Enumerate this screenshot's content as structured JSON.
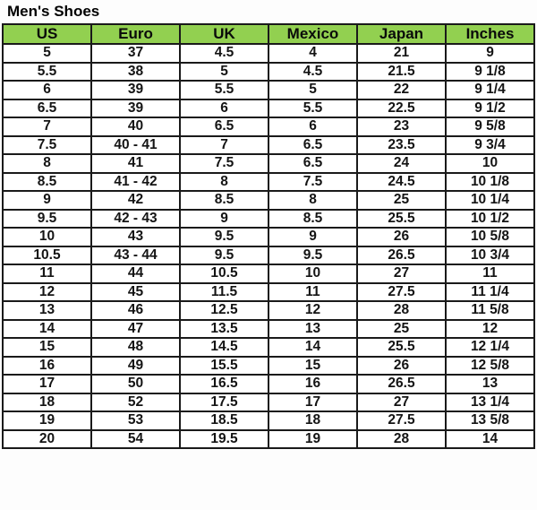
{
  "page": {
    "title": "Men's Shoes"
  },
  "colors": {
    "header_bg": "#92d050",
    "border": "#1a1a1a",
    "text": "#111111"
  },
  "chart_data": {
    "type": "table",
    "title": "Men's Shoes",
    "columns": [
      "US",
      "Euro",
      "UK",
      "Mexico",
      "Japan",
      "Inches"
    ],
    "rows": [
      [
        "5",
        "37",
        "4.5",
        "4",
        "21",
        "9"
      ],
      [
        "5.5",
        "38",
        "5",
        "4.5",
        "21.5",
        "9 1/8"
      ],
      [
        "6",
        "39",
        "5.5",
        "5",
        "22",
        "9 1/4"
      ],
      [
        "6.5",
        "39",
        "6",
        "5.5",
        "22.5",
        "9 1/2"
      ],
      [
        "7",
        "40",
        "6.5",
        "6",
        "23",
        "9 5/8"
      ],
      [
        "7.5",
        "40 - 41",
        "7",
        "6.5",
        "23.5",
        "9 3/4"
      ],
      [
        "8",
        "41",
        "7.5",
        "6.5",
        "24",
        "10"
      ],
      [
        "8.5",
        "41 - 42",
        "8",
        "7.5",
        "24.5",
        "10 1/8"
      ],
      [
        "9",
        "42",
        "8.5",
        "8",
        "25",
        "10 1/4"
      ],
      [
        "9.5",
        "42 - 43",
        "9",
        "8.5",
        "25.5",
        "10 1/2"
      ],
      [
        "10",
        "43",
        "9.5",
        "9",
        "26",
        "10 5/8"
      ],
      [
        "10.5",
        "43 - 44",
        "9.5",
        "9.5",
        "26.5",
        "10 3/4"
      ],
      [
        "11",
        "44",
        "10.5",
        "10",
        "27",
        "11"
      ],
      [
        "12",
        "45",
        "11.5",
        "11",
        "27.5",
        "11 1/4"
      ],
      [
        "13",
        "46",
        "12.5",
        "12",
        "28",
        "11 5/8"
      ],
      [
        "14",
        "47",
        "13.5",
        "13",
        "25",
        "12"
      ],
      [
        "15",
        "48",
        "14.5",
        "14",
        "25.5",
        "12 1/4"
      ],
      [
        "16",
        "49",
        "15.5",
        "15",
        "26",
        "12 5/8"
      ],
      [
        "17",
        "50",
        "16.5",
        "16",
        "26.5",
        "13"
      ],
      [
        "18",
        "52",
        "17.5",
        "17",
        "27",
        "13 1/4"
      ],
      [
        "19",
        "53",
        "18.5",
        "18",
        "27.5",
        "13 5/8"
      ],
      [
        "20",
        "54",
        "19.5",
        "19",
        "28",
        "14"
      ]
    ]
  }
}
